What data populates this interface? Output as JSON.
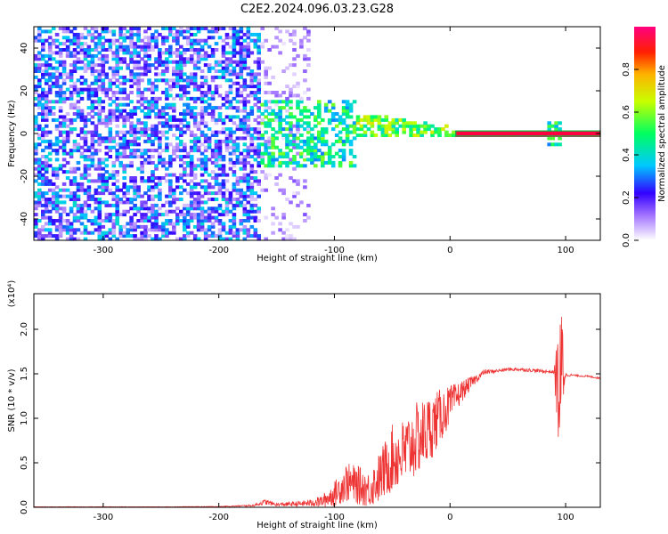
{
  "title": "C2E2.2024.096.03.23.G28",
  "chart_data": [
    {
      "type": "heatmap",
      "xlabel": "Height of straight line (km)",
      "ylabel": "Frequency (Hz)",
      "xlim": [
        -360,
        130
      ],
      "ylim": [
        -50,
        50
      ],
      "xticks": [
        -300,
        -200,
        -100,
        0,
        100
      ],
      "yticks": [
        -40,
        -20,
        0,
        20,
        40
      ],
      "colorbar": {
        "label": "Normalized spectral amplitude",
        "ticks": [
          0.0,
          0.2,
          0.4,
          0.6,
          0.8
        ],
        "range": [
          0,
          1
        ],
        "colormap": "white-purple-blue-cyan-green-yellow-red-magenta"
      },
      "regions": [
        {
          "desc": "noise",
          "x": [
            -360,
            -165
          ],
          "y": [
            -50,
            50
          ],
          "amplitude": [
            0.05,
            0.4
          ]
        },
        {
          "desc": "sparse noise",
          "x": [
            -165,
            -120
          ],
          "y": [
            -50,
            50
          ],
          "amplitude": [
            0.02,
            0.15
          ]
        },
        {
          "desc": "signal onset",
          "x": [
            -165,
            -80
          ],
          "y": [
            -15,
            15
          ],
          "amplitude": [
            0.3,
            0.6
          ]
        },
        {
          "desc": "converging signal",
          "x": [
            -80,
            5
          ],
          "y": [
            -5,
            8
          ],
          "amplitude": [
            0.4,
            0.7
          ]
        },
        {
          "desc": "strong carrier",
          "x": [
            5,
            130
          ],
          "y": [
            -1,
            1
          ],
          "amplitude": [
            0.95,
            1.0
          ]
        },
        {
          "desc": "disturbance",
          "x": [
            85,
            95
          ],
          "y": [
            -5,
            5
          ],
          "amplitude": [
            0.3,
            0.6
          ]
        }
      ]
    },
    {
      "type": "line",
      "xlabel": "Height of straight line (km)",
      "ylabel": "SNR (10 * v/v)",
      "y_exponent": "(x10⁴)",
      "xlim": [
        -360,
        130
      ],
      "ylim": [
        0,
        2.4
      ],
      "xticks": [
        -300,
        -200,
        -100,
        0,
        100
      ],
      "yticks": [
        0.0,
        0.5,
        1.0,
        1.5,
        2.0
      ],
      "yticklabels": [
        "0.0",
        "0.5",
        "1.0",
        "1.5",
        "2.0"
      ],
      "series": [
        {
          "color": "#ee3333",
          "x": [
            -360,
            -300,
            -250,
            -200,
            -170,
            -160,
            -150,
            -130,
            -120,
            -110,
            -100,
            -90,
            -80,
            -70,
            -60,
            -50,
            -40,
            -30,
            -20,
            -10,
            0,
            10,
            20,
            30,
            40,
            50,
            60,
            70,
            80,
            90,
            93,
            95,
            97,
            100,
            110,
            120,
            130
          ],
          "y": [
            0.005,
            0.005,
            0.005,
            0.008,
            0.02,
            0.06,
            0.03,
            0.04,
            0.05,
            0.07,
            0.15,
            0.28,
            0.25,
            0.2,
            0.35,
            0.55,
            0.6,
            0.75,
            0.85,
            1.0,
            1.15,
            1.3,
            1.42,
            1.52,
            1.53,
            1.55,
            1.55,
            1.54,
            1.53,
            1.52,
            1.4,
            1.2,
            1.6,
            1.49,
            1.48,
            1.47,
            1.45
          ],
          "noise": [
            0.002,
            0.002,
            0.002,
            0.003,
            0.01,
            0.03,
            0.02,
            0.03,
            0.04,
            0.07,
            0.14,
            0.22,
            0.22,
            0.2,
            0.3,
            0.38,
            0.4,
            0.42,
            0.4,
            0.32,
            0.22,
            0.12,
            0.06,
            0.03,
            0.02,
            0.02,
            0.02,
            0.02,
            0.02,
            0.02,
            0.6,
            0.9,
            0.7,
            0.02,
            0.01,
            0.01,
            0.01
          ]
        }
      ]
    }
  ]
}
